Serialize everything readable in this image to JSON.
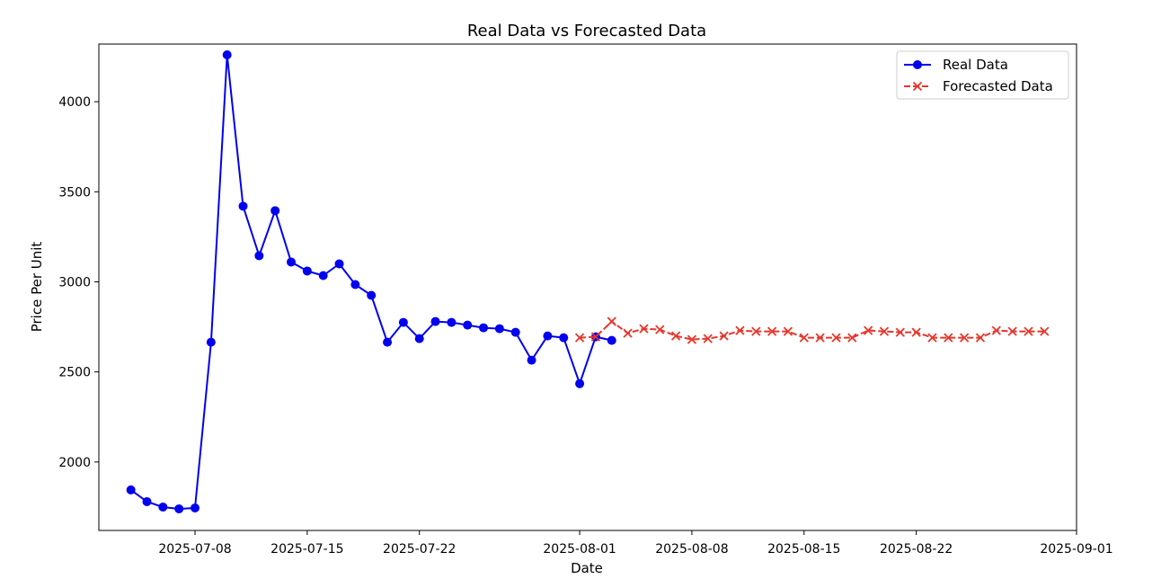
{
  "chart_data": {
    "type": "line",
    "title": "Real Data vs Forecasted Data",
    "xlabel": "Date",
    "ylabel": "Price Per Unit",
    "xlim": [
      "2025-07-02",
      "2025-09-01"
    ],
    "ylim": [
      1620,
      4320
    ],
    "xticks": [
      "2025-07-08",
      "2025-07-15",
      "2025-07-22",
      "2025-08-01",
      "2025-08-08",
      "2025-08-15",
      "2025-08-22",
      "2025-09-01"
    ],
    "yticks": [
      2000,
      2500,
      3000,
      3500,
      4000
    ],
    "legend_position": "top-right",
    "grid": false,
    "series": [
      {
        "name": "Real Data",
        "color": "#0000ee",
        "marker": "circle",
        "line_style": "solid",
        "x": [
          "2025-07-04",
          "2025-07-05",
          "2025-07-06",
          "2025-07-07",
          "2025-07-08",
          "2025-07-09",
          "2025-07-10",
          "2025-07-11",
          "2025-07-12",
          "2025-07-13",
          "2025-07-14",
          "2025-07-15",
          "2025-07-16",
          "2025-07-17",
          "2025-07-18",
          "2025-07-19",
          "2025-07-20",
          "2025-07-21",
          "2025-07-22",
          "2025-07-23",
          "2025-07-24",
          "2025-07-25",
          "2025-07-26",
          "2025-07-27",
          "2025-07-28",
          "2025-07-29",
          "2025-07-30",
          "2025-07-31",
          "2025-08-01",
          "2025-08-02",
          "2025-08-03"
        ],
        "y": [
          1845,
          1780,
          1750,
          1740,
          1745,
          2665,
          4260,
          3420,
          3145,
          3395,
          3110,
          3060,
          3035,
          3100,
          2985,
          2925,
          2665,
          2775,
          2685,
          2780,
          2775,
          2760,
          2745,
          2740,
          2720,
          2565,
          2700,
          2690,
          2435,
          2695,
          2675
        ]
      },
      {
        "name": "Forecasted Data",
        "color": "#e8362b",
        "marker": "x",
        "line_style": "dashed",
        "x": [
          "2025-08-01",
          "2025-08-02",
          "2025-08-03",
          "2025-08-04",
          "2025-08-05",
          "2025-08-06",
          "2025-08-07",
          "2025-08-08",
          "2025-08-09",
          "2025-08-10",
          "2025-08-11",
          "2025-08-12",
          "2025-08-13",
          "2025-08-14",
          "2025-08-15",
          "2025-08-16",
          "2025-08-17",
          "2025-08-18",
          "2025-08-19",
          "2025-08-20",
          "2025-08-21",
          "2025-08-22",
          "2025-08-23",
          "2025-08-24",
          "2025-08-25",
          "2025-08-26",
          "2025-08-27",
          "2025-08-28",
          "2025-08-29",
          "2025-08-30"
        ],
        "y": [
          2690,
          2695,
          2780,
          2715,
          2740,
          2735,
          2700,
          2680,
          2685,
          2700,
          2730,
          2725,
          2725,
          2725,
          2690,
          2690,
          2690,
          2690,
          2730,
          2725,
          2720,
          2720,
          2690,
          2690,
          2690,
          2690,
          2730,
          2725,
          2725,
          2725
        ]
      }
    ]
  }
}
